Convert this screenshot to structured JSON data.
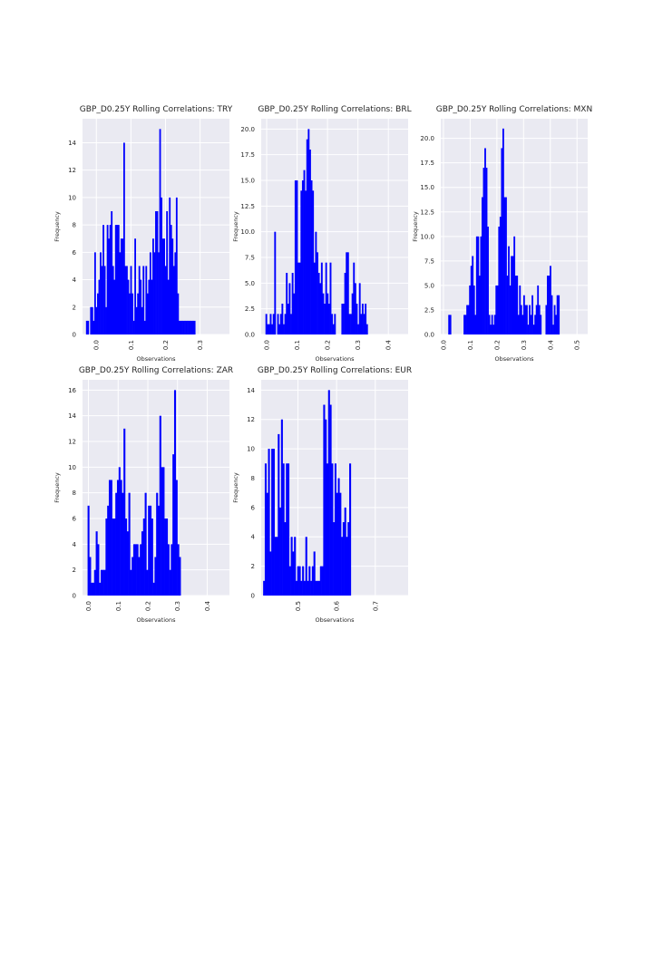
{
  "chart_data": [
    {
      "type": "bar",
      "title": "GBP_D0.25Y Rolling Correlations: TRY",
      "xlabel": "Observations",
      "ylabel": "Frequency",
      "xlim": [
        -0.04,
        0.385
      ],
      "ylim": [
        0,
        15.75
      ],
      "xticks": [
        "0.0",
        "0.1",
        "0.2",
        "0.3"
      ],
      "xtick_values": [
        0.0,
        0.1,
        0.2,
        0.3
      ],
      "yticks": [
        "0",
        "2",
        "4",
        "6",
        "8",
        "10",
        "12",
        "14"
      ],
      "ytick_values": [
        0,
        2,
        4,
        6,
        8,
        10,
        12,
        14
      ],
      "bin_start": -0.03,
      "bin_width": 0.004,
      "values": [
        1,
        1,
        0,
        2,
        2,
        1,
        6,
        2,
        3,
        4,
        6,
        5,
        8,
        5,
        2,
        8,
        7,
        8,
        9,
        5,
        4,
        8,
        8,
        8,
        6,
        7,
        7,
        14,
        5,
        5,
        4,
        3,
        5,
        3,
        1,
        7,
        2,
        3,
        5,
        4,
        2,
        5,
        1,
        5,
        3,
        4,
        6,
        4,
        7,
        6,
        9,
        9,
        6,
        15,
        10,
        7,
        7,
        5,
        9,
        4,
        10,
        8,
        7,
        5,
        6,
        10,
        3,
        1,
        1,
        1,
        1,
        1,
        1,
        1,
        1,
        1,
        1,
        1,
        1
      ]
    },
    {
      "type": "bar",
      "title": "GBP_D0.25Y Rolling Correlations: BRL",
      "xlabel": "Observations",
      "ylabel": "Frequency",
      "xlim": [
        -0.018,
        0.465
      ],
      "ylim": [
        0,
        21
      ],
      "xticks": [
        "0.0",
        "0.1",
        "0.2",
        "0.3",
        "0.4"
      ],
      "xtick_values": [
        0.0,
        0.1,
        0.2,
        0.3,
        0.4
      ],
      "yticks": [
        "0.0",
        "2.5",
        "5.0",
        "7.5",
        "10.0",
        "12.5",
        "15.0",
        "17.5",
        "20.0"
      ],
      "ytick_values": [
        0,
        2.5,
        5,
        7.5,
        10,
        12.5,
        15,
        17.5,
        20
      ],
      "bin_start": -0.004,
      "bin_width": 0.0048,
      "values": [
        2,
        1,
        1,
        2,
        1,
        2,
        10,
        0,
        2,
        1,
        2,
        3,
        1,
        2,
        6,
        3,
        5,
        2,
        6,
        4,
        15,
        15,
        7,
        7,
        14,
        15,
        16,
        14,
        19,
        20,
        18,
        15,
        14,
        7,
        10,
        8,
        6,
        5,
        7,
        4,
        3,
        7,
        4,
        3,
        7,
        2,
        1,
        2,
        0,
        0,
        0,
        0,
        3,
        3,
        6,
        8,
        8,
        2,
        2,
        4,
        7,
        5,
        3,
        1,
        5,
        2,
        3,
        2,
        3,
        1
      ]
    },
    {
      "type": "bar",
      "title": "GBP_D0.25Y Rolling Correlations: MXN",
      "xlabel": "Observations",
      "ylabel": "Frequency",
      "xlim": [
        -0.01,
        0.54
      ],
      "ylim": [
        0,
        22
      ],
      "xticks": [
        "0.0",
        "0.1",
        "0.2",
        "0.3",
        "0.4",
        "0.5"
      ],
      "xtick_values": [
        0.0,
        0.1,
        0.2,
        0.3,
        0.4,
        0.5
      ],
      "yticks": [
        "0.0",
        "2.5",
        "5.0",
        "7.5",
        "10.0",
        "12.5",
        "15.0",
        "17.5",
        "20.0"
      ],
      "ytick_values": [
        0,
        2.5,
        5,
        7.5,
        10,
        12.5,
        15,
        17.5,
        20
      ],
      "bin_start": 0.018,
      "bin_width": 0.0052,
      "values": [
        2,
        2,
        0,
        0,
        0,
        0,
        0,
        0,
        0,
        0,
        0,
        2,
        2,
        3,
        3,
        5,
        7,
        8,
        5,
        2,
        10,
        10,
        6,
        10,
        14,
        17,
        19,
        17,
        11,
        2,
        1,
        2,
        1,
        2,
        5,
        5,
        11,
        12,
        19,
        21,
        14,
        14,
        6,
        9,
        5,
        8,
        8,
        10,
        6,
        6,
        2,
        5,
        3,
        2,
        4,
        3,
        3,
        1,
        3,
        2,
        4,
        1,
        2,
        3,
        5,
        3,
        2,
        0,
        0,
        0,
        3,
        6,
        6,
        7,
        4,
        1,
        3,
        2,
        4,
        4
      ]
    },
    {
      "type": "bar",
      "title": "GBP_D0.25Y Rolling Correlations: ZAR",
      "xlabel": "Observations",
      "ylabel": "Frequency",
      "xlim": [
        -0.02,
        0.475
      ],
      "ylim": [
        0,
        16.8
      ],
      "xticks": [
        "0.0",
        "0.1",
        "0.2",
        "0.3",
        "0.4"
      ],
      "xtick_values": [
        0.0,
        0.1,
        0.2,
        0.3,
        0.4
      ],
      "yticks": [
        "0",
        "2",
        "4",
        "6",
        "8",
        "10",
        "12",
        "14",
        "16"
      ],
      "ytick_values": [
        0,
        2,
        4,
        6,
        8,
        10,
        12,
        14,
        16
      ],
      "bin_start": -0.003,
      "bin_width": 0.0055,
      "values": [
        7,
        3,
        1,
        1,
        2,
        5,
        4,
        1,
        2,
        2,
        2,
        6,
        7,
        9,
        9,
        6,
        6,
        8,
        9,
        10,
        9,
        8,
        13,
        6,
        5,
        8,
        2,
        3,
        4,
        4,
        4,
        3,
        4,
        5,
        6,
        8,
        2,
        7,
        7,
        6,
        1,
        3,
        8,
        7,
        14,
        10,
        10,
        6,
        6,
        4,
        2,
        4,
        11,
        16,
        9,
        4,
        3
      ]
    },
    {
      "type": "bar",
      "title": "GBP_D0.25Y Rolling Correlations: EUR",
      "xlabel": "Observations",
      "ylabel": "Frequency",
      "xlim": [
        0.405,
        0.785
      ],
      "ylim": [
        0,
        14.7
      ],
      "xticks": [
        "0.5",
        "0.6",
        "0.7"
      ],
      "xtick_values": [
        0.5,
        0.6,
        0.7
      ],
      "yticks": [
        "0",
        "2",
        "4",
        "6",
        "8",
        "10",
        "12",
        "14"
      ],
      "ytick_values": [
        0,
        2,
        4,
        6,
        8,
        10,
        12,
        14
      ],
      "bin_start": 0.41,
      "bin_width": 0.0042,
      "values": [
        1,
        9,
        7,
        10,
        3,
        10,
        10,
        4,
        4,
        11,
        6,
        12,
        9,
        5,
        9,
        9,
        2,
        4,
        3,
        4,
        1,
        2,
        2,
        1,
        2,
        1,
        4,
        1,
        2,
        1,
        2,
        3,
        1,
        1,
        1,
        2,
        2,
        13,
        12,
        9,
        14,
        13,
        9,
        5,
        9,
        7,
        8,
        7,
        4,
        5,
        6,
        4,
        5,
        9
      ]
    }
  ]
}
